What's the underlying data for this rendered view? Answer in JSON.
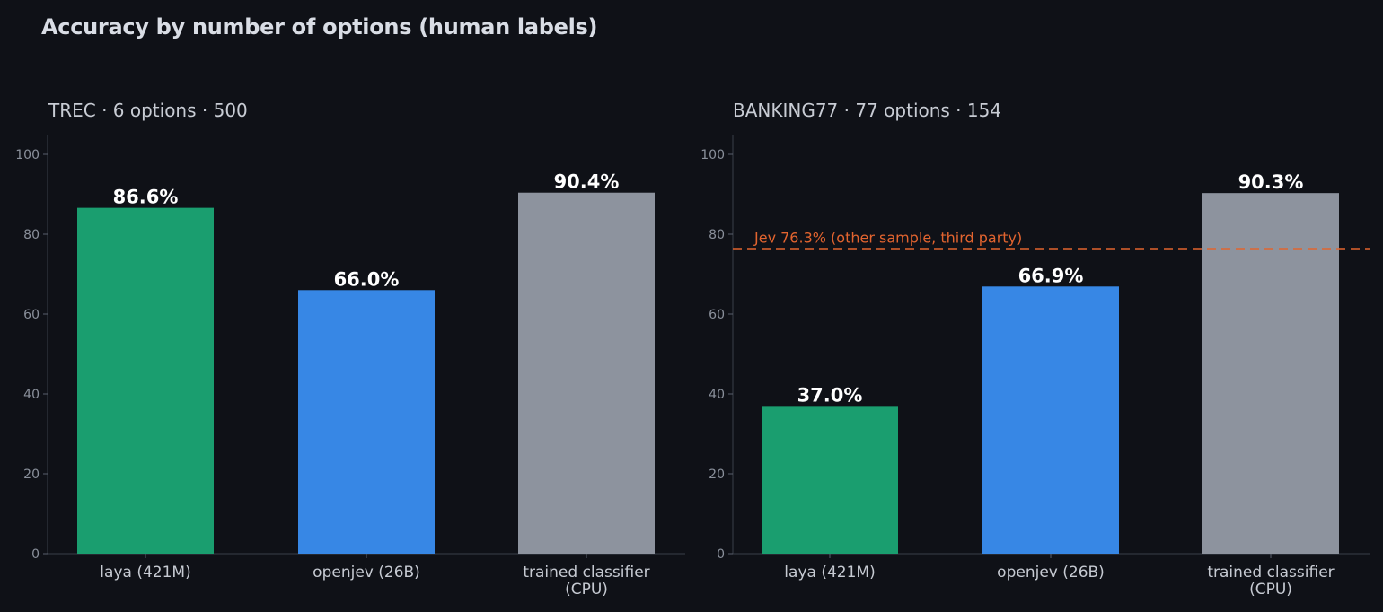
{
  "figure": {
    "title": "Accuracy by number of options (human labels)"
  },
  "chart_data": [
    {
      "type": "bar",
      "title": "TREC · 6 options · 500",
      "categories": [
        "laya (421M)",
        "openjev (26B)",
        "trained classifier\n(CPU)"
      ],
      "values": [
        86.6,
        66.0,
        90.4
      ],
      "value_labels": [
        "86.6%",
        "66.0%",
        "90.4%"
      ],
      "colors": [
        "#1a9e6f",
        "#3787e5",
        "#8d939e"
      ],
      "ylim": [
        0,
        105
      ],
      "yticks": [
        0,
        20,
        40,
        60,
        80,
        100
      ],
      "xlabel": "",
      "ylabel": "",
      "grid": false,
      "legend": "none"
    },
    {
      "type": "bar",
      "title": "BANKING77 · 77 options · 154",
      "categories": [
        "laya (421M)",
        "openjev (26B)",
        "trained classifier\n(CPU)"
      ],
      "values": [
        37.0,
        66.9,
        90.3
      ],
      "value_labels": [
        "37.0%",
        "66.9%",
        "90.3%"
      ],
      "colors": [
        "#1a9e6f",
        "#3787e5",
        "#8d939e"
      ],
      "ylim": [
        0,
        105
      ],
      "yticks": [
        0,
        20,
        40,
        60,
        80,
        100
      ],
      "xlabel": "",
      "ylabel": "",
      "grid": false,
      "legend": "none",
      "reference_line": {
        "value": 76.3,
        "label": "Jev 76.3% (other sample, third party)",
        "color": "#e2642f",
        "style": "dashed"
      }
    }
  ]
}
